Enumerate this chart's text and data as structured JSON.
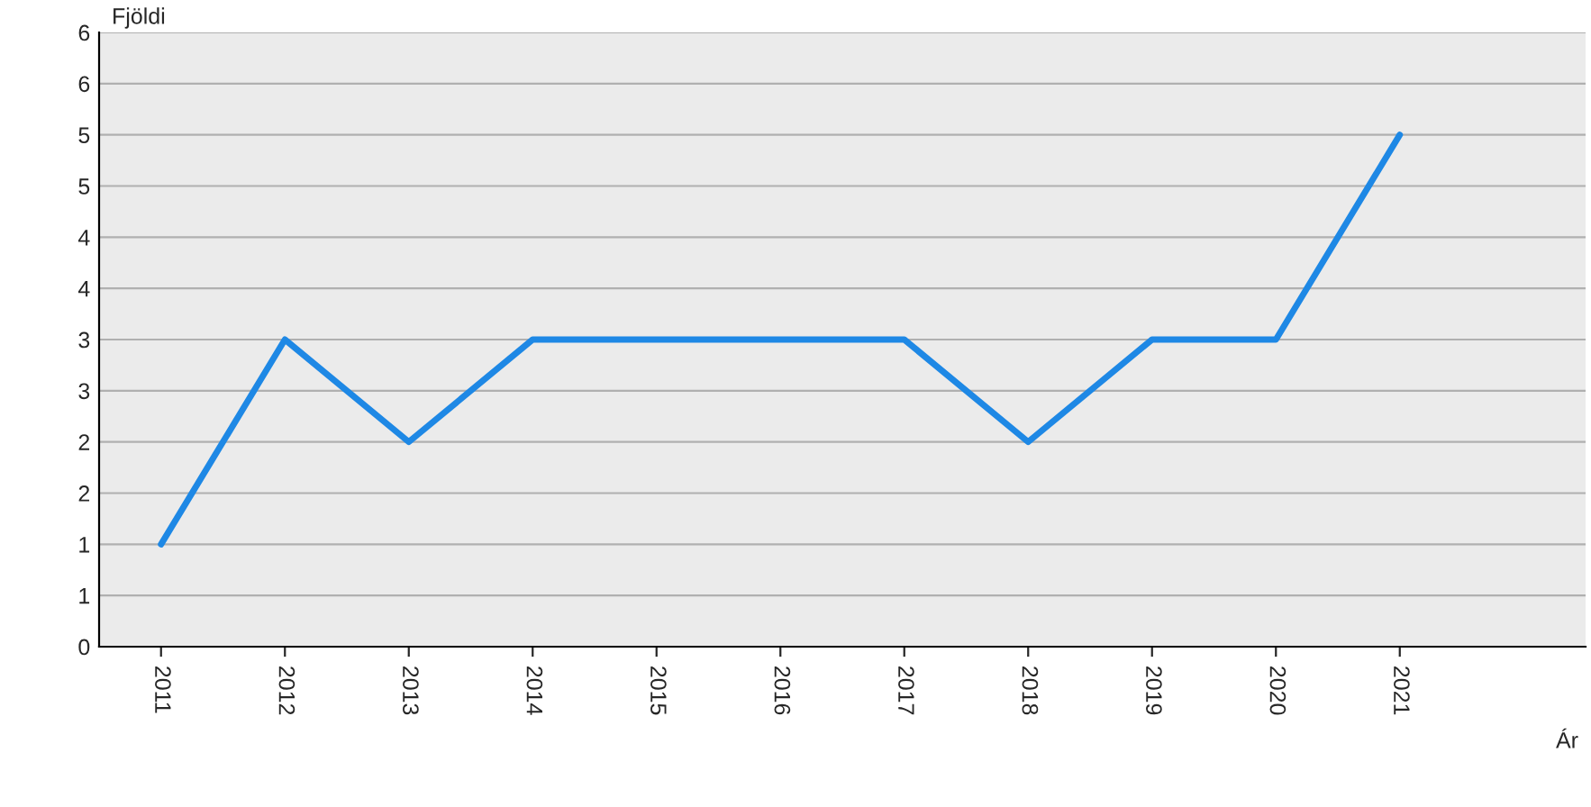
{
  "chart_data": {
    "type": "line",
    "xlabel": "Ár",
    "ylabel": "Fjöldi",
    "categories": [
      "2011",
      "2012",
      "2013",
      "2014",
      "2015",
      "2016",
      "2017",
      "2018",
      "2019",
      "2020",
      "2021"
    ],
    "series": [
      {
        "color": "#1e88e5",
        "values": [
          1,
          3,
          2,
          3,
          3,
          3,
          3,
          2,
          3,
          3,
          5
        ]
      }
    ],
    "ylim": [
      0,
      6
    ],
    "yticks": [
      0,
      {
        "value": 0.5,
        "label": "1"
      },
      1,
      {
        "value": 1.5,
        "label": "2"
      },
      2,
      {
        "value": 2.5,
        "label": "3"
      },
      3,
      {
        "value": 3.5,
        "label": "4"
      },
      4,
      {
        "value": 4.5,
        "label": "5"
      },
      5,
      {
        "value": 5.5,
        "label": "6"
      },
      6
    ],
    "grid": "y",
    "legend": false,
    "marker": "none",
    "line_style": "solid"
  }
}
